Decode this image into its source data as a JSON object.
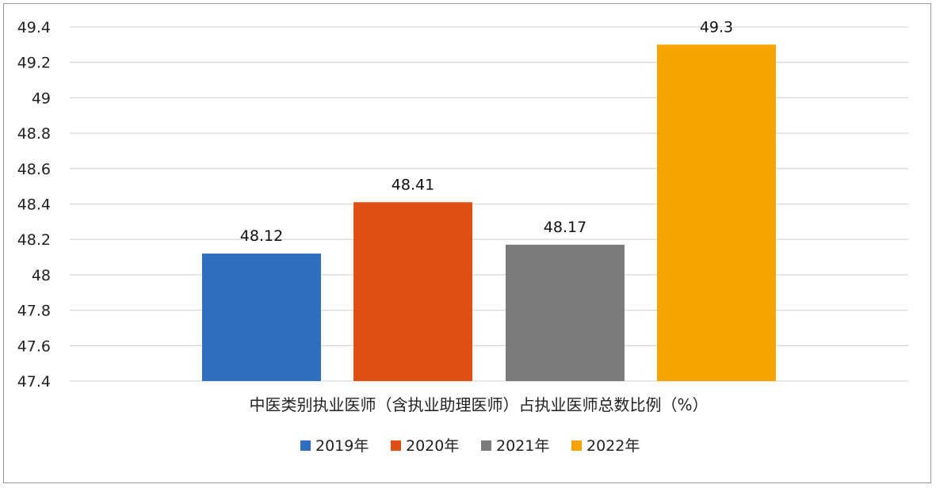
{
  "chart_data": {
    "type": "bar",
    "categories": [
      "中医类别执业医师（含执业助理医师）占执业医师总数比例（%）"
    ],
    "series": [
      {
        "name": "2019年",
        "values": [
          48.12
        ],
        "color": "#2f6fbf"
      },
      {
        "name": "2020年",
        "values": [
          48.41
        ],
        "color": "#df4f12"
      },
      {
        "name": "2021年",
        "values": [
          48.17
        ],
        "color": "#7b7b7b"
      },
      {
        "name": "2022年",
        "values": [
          49.3
        ],
        "color": "#f7a300"
      }
    ],
    "data_labels": [
      "48.12",
      "48.41",
      "48.17",
      "49.3"
    ],
    "y_ticks": [
      "47.4",
      "47.6",
      "47.8",
      "48",
      "48.2",
      "48.4",
      "48.6",
      "48.8",
      "49",
      "49.2",
      "49.4"
    ],
    "ylim": [
      47.4,
      49.4
    ],
    "grid": true,
    "legend_position": "bottom",
    "gridline_color": "#d9d9d9"
  }
}
